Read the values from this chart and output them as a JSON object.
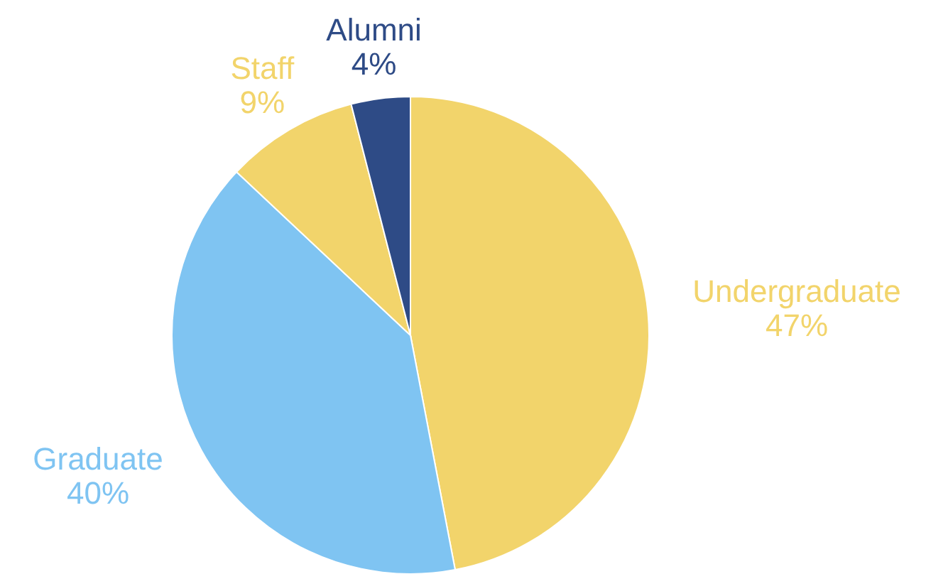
{
  "chart_data": {
    "type": "pie",
    "categories": [
      "Undergraduate",
      "Graduate",
      "Staff",
      "Alumni"
    ],
    "values": [
      47,
      40,
      9,
      4
    ],
    "value_labels": [
      "47%",
      "40%",
      "9%",
      "4%"
    ],
    "colors": [
      "#f2d46b",
      "#7fc4f2",
      "#f2d46b",
      "#2e4b86"
    ]
  }
}
